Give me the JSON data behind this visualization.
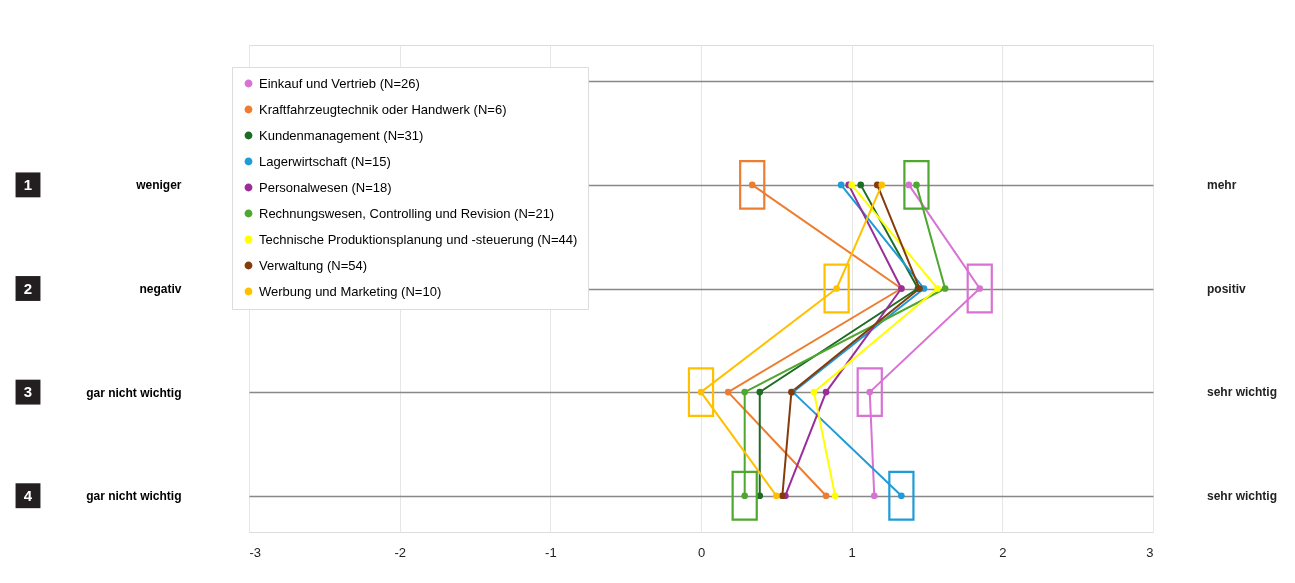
{
  "chart_data": {
    "type": "line",
    "orientation": "horizontal",
    "categories": [
      null,
      "weniger",
      "negativ",
      "gar nicht wichtig",
      "gar nicht wichtig"
    ],
    "xlim": [
      -3,
      3
    ],
    "xticks": [
      -3,
      -2,
      -1,
      0,
      1,
      2,
      3
    ],
    "grid": true,
    "legend": "top left",
    "marker": "circle",
    "line_style": "solid",
    "annotations": [
      "1",
      "2",
      "3",
      "4",
      "mehr",
      "positiv",
      "sehr wichtig",
      "sehr wichtig"
    ],
    "series": [
      {
        "name": "Einkauf und Vertrieb (N=26)",
        "color": "#d872d4",
        "values": [
          null,
          1.38,
          1.85,
          1.12,
          1.15
        ]
      },
      {
        "name": "Kraftfahrzeugtechnik oder Handwerk (N=6)",
        "color": "#ed7d31",
        "values": [
          null,
          0.34,
          1.33,
          0.18,
          0.83
        ]
      },
      {
        "name": "Kundenmanagement (N=31)",
        "color": "#1e6b24",
        "values": [
          null,
          1.06,
          1.44,
          0.39,
          0.39
        ]
      },
      {
        "name": "Lagerwirtschaft (N=15)",
        "color": "#1f9bd7",
        "values": [
          null,
          0.93,
          1.48,
          0.61,
          1.33
        ]
      },
      {
        "name": "Personalwesen (N=18)",
        "color": "#9b2d9b",
        "values": [
          null,
          0.98,
          1.33,
          0.83,
          0.56
        ]
      },
      {
        "name": "Rechnungswesen, Controlling und Revision (N=21)",
        "color": "#4ea72e",
        "values": [
          null,
          1.43,
          1.62,
          0.29,
          0.29
        ]
      },
      {
        "name": "Technische Produktionsplanung und -steuerung (N=44)",
        "color": "#ffff00",
        "values": [
          null,
          1.0,
          1.57,
          0.75,
          0.89
        ]
      },
      {
        "name": "Verwaltung (N=54)",
        "color": "#843c0c",
        "values": [
          null,
          1.17,
          1.45,
          0.6,
          0.54
        ]
      },
      {
        "name": "Werbung und Marketing (N=10)",
        "color": "#ffc000",
        "values": [
          null,
          1.2,
          0.9,
          0.0,
          0.5
        ]
      }
    ]
  }
}
